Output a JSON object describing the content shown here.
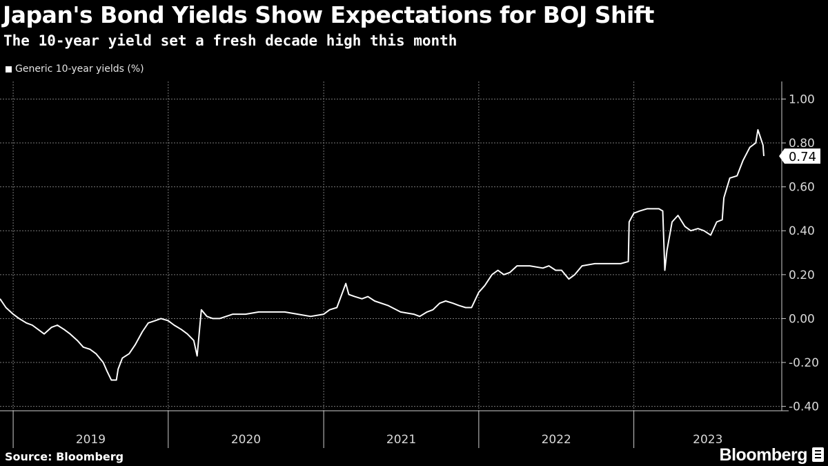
{
  "chart_data": {
    "type": "line",
    "title": "Japan's Bond Yields Show Expectations for BOJ Shift",
    "subtitle": "The 10-year yield set a fresh decade high this month",
    "legend": "Generic 10-year yields (%)",
    "source": "Source: Bloomberg",
    "ylim": [
      -0.42,
      1.08
    ],
    "yticks": [
      -0.4,
      -0.2,
      0.0,
      0.2,
      0.4,
      0.6,
      0.8,
      1.0
    ],
    "ytick_labels": [
      "-0.40",
      "-0.20",
      "0.00",
      "0.20",
      "0.40",
      "0.60",
      "0.80",
      "1.00"
    ],
    "xlim": [
      "2018-12-01",
      "2023-11-03"
    ],
    "year_labels": [
      "2019",
      "2020",
      "2021",
      "2022",
      "2023"
    ],
    "grid": true,
    "last_value_label": "0.74",
    "series": [
      {
        "name": "Generic 10-year yields (%)",
        "x": [
          "2018-12-01",
          "2018-12-15",
          "2019-01-01",
          "2019-01-15",
          "2019-02-01",
          "2019-02-15",
          "2019-03-01",
          "2019-03-15",
          "2019-04-01",
          "2019-04-15",
          "2019-05-01",
          "2019-05-15",
          "2019-06-01",
          "2019-06-15",
          "2019-07-01",
          "2019-07-15",
          "2019-08-01",
          "2019-08-10",
          "2019-08-20",
          "2019-09-01",
          "2019-09-05",
          "2019-09-15",
          "2019-10-01",
          "2019-10-15",
          "2019-11-01",
          "2019-11-15",
          "2019-12-01",
          "2019-12-15",
          "2020-01-01",
          "2020-01-15",
          "2020-02-01",
          "2020-02-15",
          "2020-03-01",
          "2020-03-09",
          "2020-03-19",
          "2020-04-01",
          "2020-04-15",
          "2020-05-01",
          "2020-06-01",
          "2020-07-01",
          "2020-08-01",
          "2020-09-01",
          "2020-10-01",
          "2020-11-01",
          "2020-12-01",
          "2021-01-01",
          "2021-01-15",
          "2021-02-01",
          "2021-02-22",
          "2021-03-01",
          "2021-03-15",
          "2021-04-01",
          "2021-04-15",
          "2021-05-01",
          "2021-06-01",
          "2021-07-01",
          "2021-08-01",
          "2021-08-15",
          "2021-09-01",
          "2021-09-15",
          "2021-10-01",
          "2021-10-15",
          "2021-11-01",
          "2021-11-15",
          "2021-12-01",
          "2021-12-15",
          "2022-01-01",
          "2022-01-15",
          "2022-02-01",
          "2022-02-15",
          "2022-03-01",
          "2022-03-15",
          "2022-04-01",
          "2022-05-01",
          "2022-06-01",
          "2022-06-15",
          "2022-07-01",
          "2022-07-15",
          "2022-08-01",
          "2022-08-15",
          "2022-09-01",
          "2022-10-01",
          "2022-11-01",
          "2022-12-01",
          "2022-12-19",
          "2022-12-21",
          "2023-01-01",
          "2023-01-15",
          "2023-02-01",
          "2023-03-01",
          "2023-03-10",
          "2023-03-15",
          "2023-03-20",
          "2023-04-01",
          "2023-04-15",
          "2023-05-01",
          "2023-05-15",
          "2023-06-01",
          "2023-06-15",
          "2023-07-01",
          "2023-07-15",
          "2023-07-28",
          "2023-08-01",
          "2023-08-15",
          "2023-09-01",
          "2023-09-15",
          "2023-10-01",
          "2023-10-15",
          "2023-10-20",
          "2023-11-01",
          "2023-11-03"
        ],
        "y": [
          0.09,
          0.05,
          0.02,
          0.0,
          -0.02,
          -0.03,
          -0.05,
          -0.07,
          -0.04,
          -0.03,
          -0.05,
          -0.07,
          -0.1,
          -0.13,
          -0.14,
          -0.16,
          -0.2,
          -0.24,
          -0.28,
          -0.28,
          -0.23,
          -0.18,
          -0.16,
          -0.12,
          -0.06,
          -0.02,
          -0.01,
          0.0,
          -0.01,
          -0.03,
          -0.05,
          -0.07,
          -0.1,
          -0.17,
          0.04,
          0.01,
          0.0,
          0.0,
          0.02,
          0.02,
          0.03,
          0.03,
          0.03,
          0.02,
          0.01,
          0.02,
          0.04,
          0.05,
          0.16,
          0.11,
          0.1,
          0.09,
          0.1,
          0.08,
          0.06,
          0.03,
          0.02,
          0.01,
          0.03,
          0.04,
          0.07,
          0.08,
          0.07,
          0.06,
          0.05,
          0.05,
          0.12,
          0.15,
          0.2,
          0.22,
          0.2,
          0.21,
          0.24,
          0.24,
          0.23,
          0.24,
          0.22,
          0.22,
          0.18,
          0.2,
          0.24,
          0.25,
          0.25,
          0.25,
          0.26,
          0.44,
          0.48,
          0.49,
          0.5,
          0.5,
          0.49,
          0.22,
          0.31,
          0.44,
          0.47,
          0.42,
          0.4,
          0.41,
          0.4,
          0.38,
          0.44,
          0.45,
          0.55,
          0.64,
          0.65,
          0.72,
          0.78,
          0.8,
          0.86,
          0.79,
          0.74
        ]
      }
    ]
  }
}
